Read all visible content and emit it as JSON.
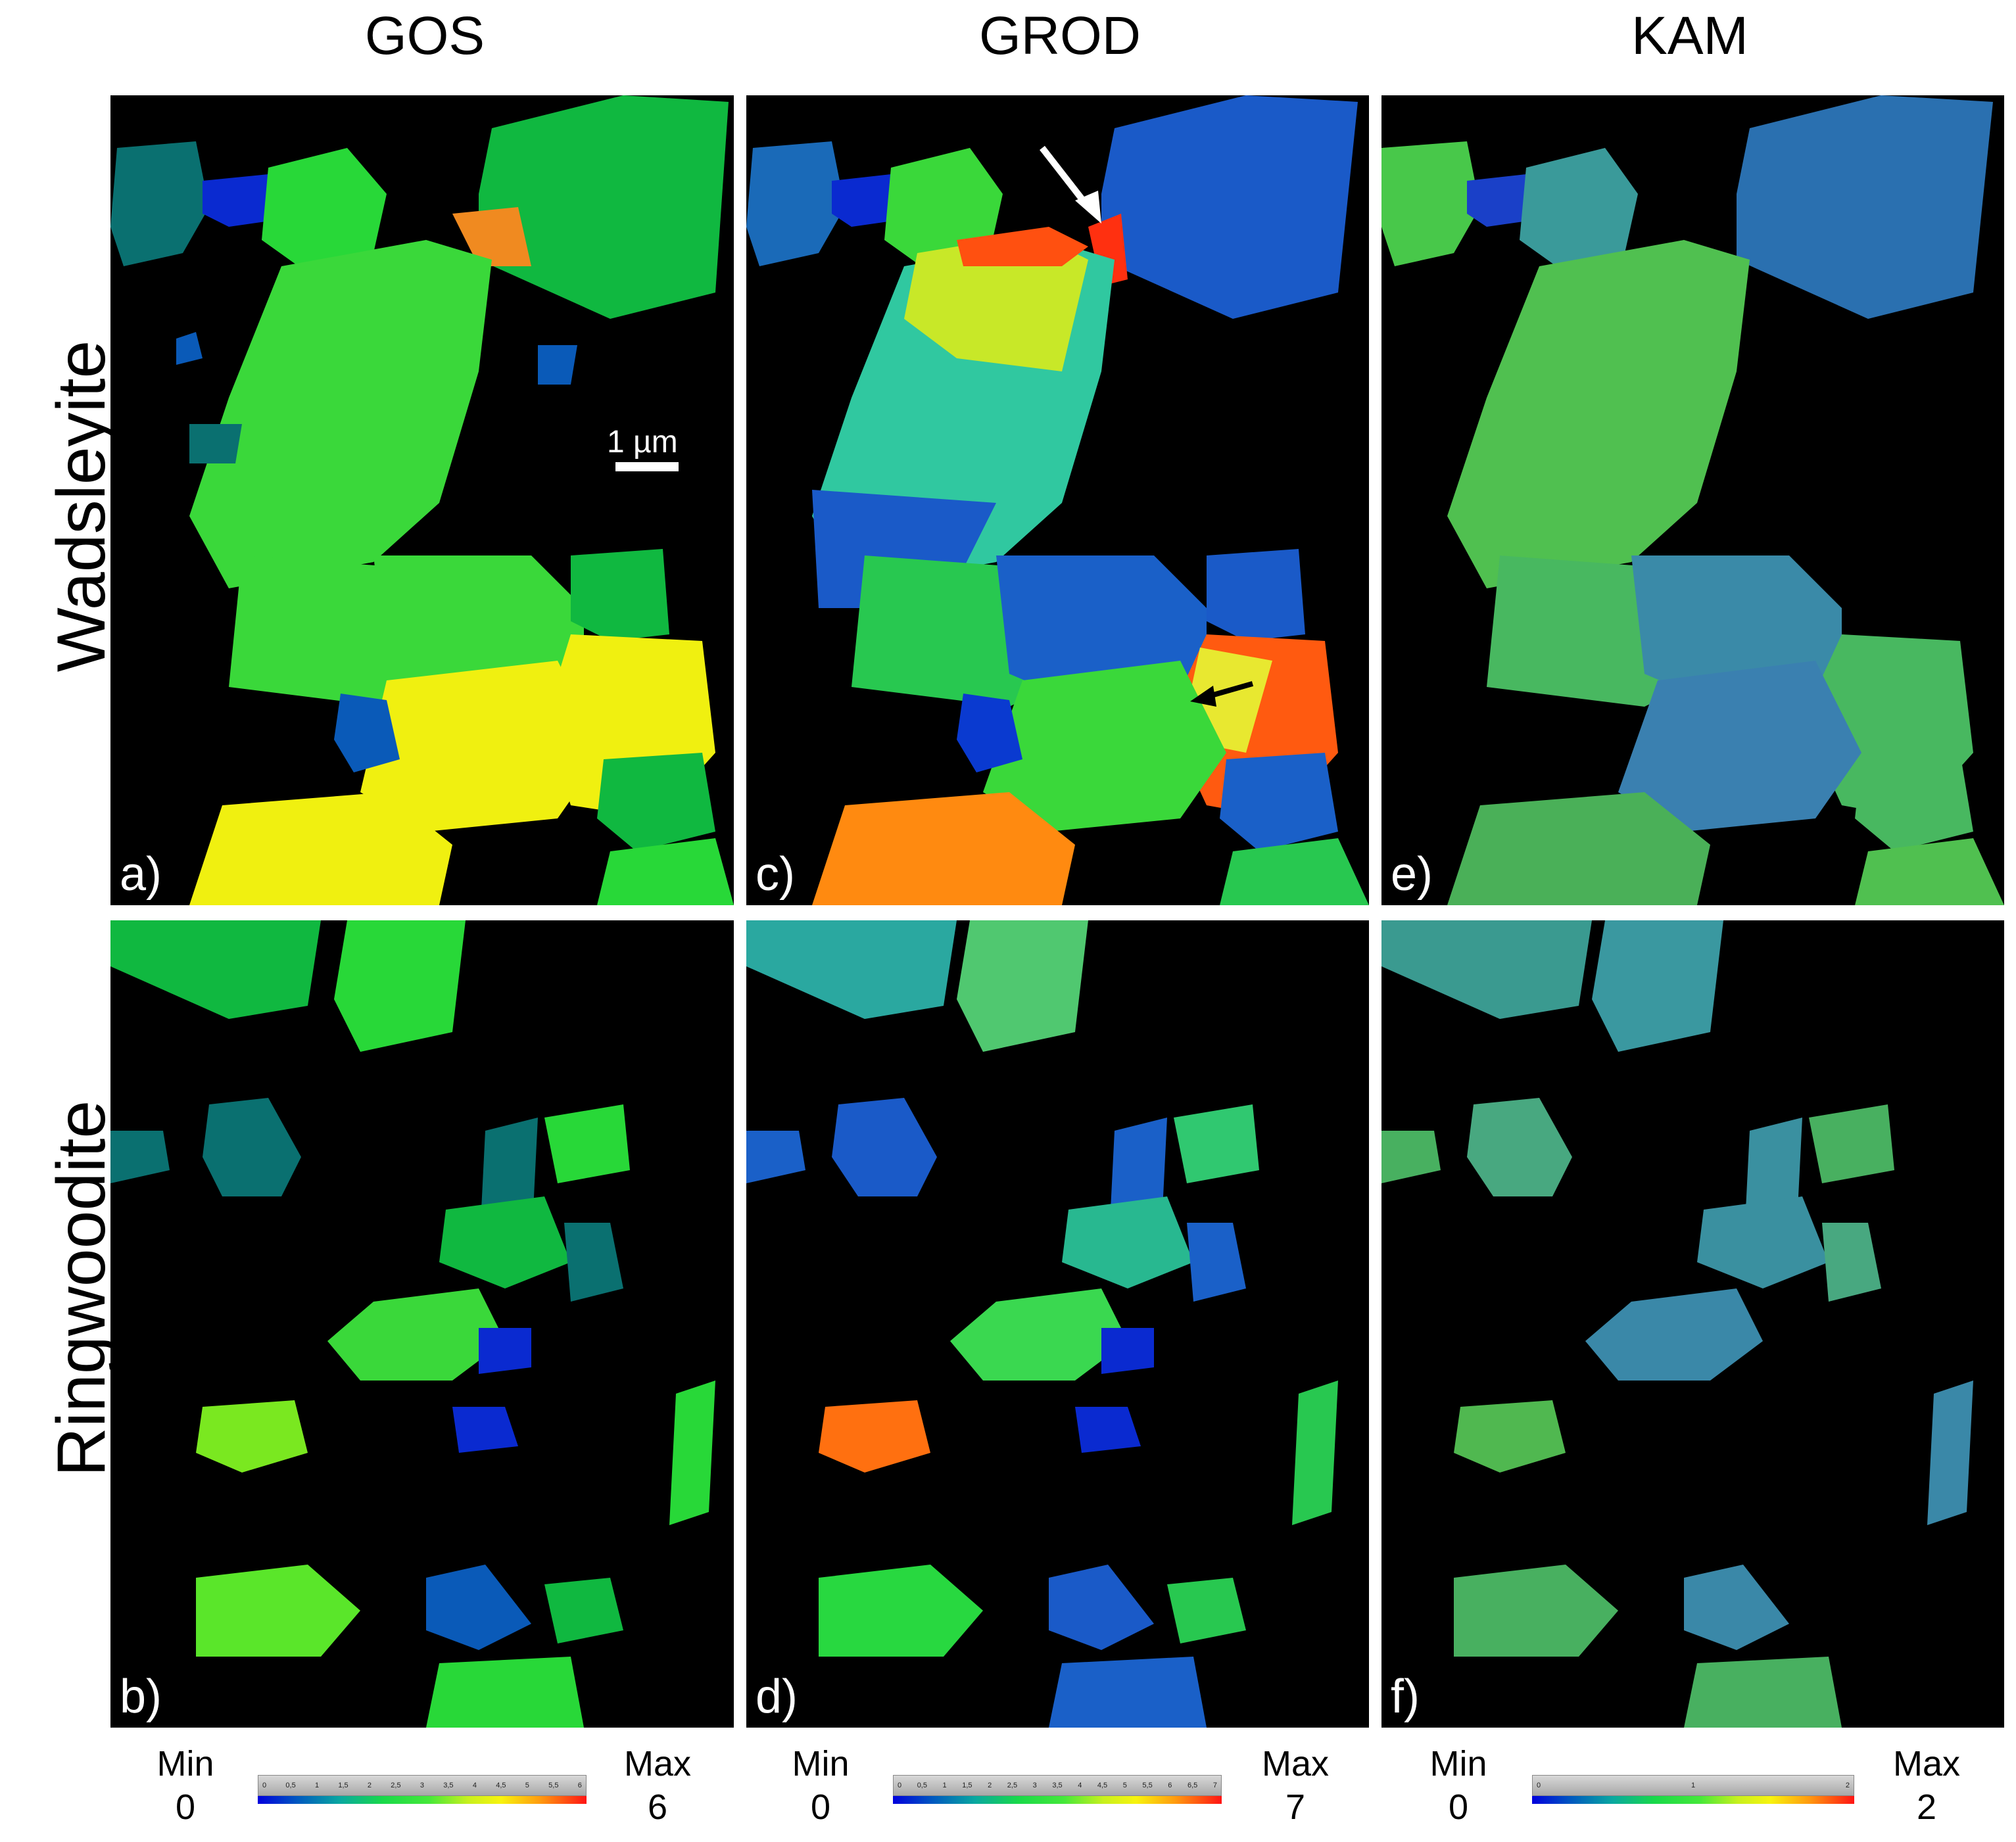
{
  "columns": [
    "GOS",
    "GROD",
    "KAM"
  ],
  "rows": [
    "Wadsleyite",
    "Ringwoodite"
  ],
  "panels": {
    "a": "a)",
    "b": "b)",
    "c": "c)",
    "d": "d)",
    "e": "e)",
    "f": "f)"
  },
  "scale_bar": "1 µm",
  "colorbars": [
    {
      "min_label": "Min",
      "min_value": "0",
      "max_label": "Max",
      "max_value": "6",
      "ticks": [
        "0",
        "0,5",
        "1",
        "1,5",
        "2",
        "2,5",
        "3",
        "3,5",
        "4",
        "4,5",
        "5",
        "5,5",
        "6"
      ]
    },
    {
      "min_label": "Min",
      "min_value": "0",
      "max_label": "Max",
      "max_value": "7",
      "ticks": [
        "0",
        "0,5",
        "1",
        "1,5",
        "2",
        "2,5",
        "3",
        "3,5",
        "4",
        "4,5",
        "5",
        "5,5",
        "6",
        "6,5",
        "7"
      ]
    },
    {
      "min_label": "Min",
      "min_value": "0",
      "max_label": "Max",
      "max_value": "2",
      "ticks": [
        "0",
        "1",
        "2"
      ]
    }
  ],
  "colors": {
    "background": "#000000",
    "blue": "#0a2ad0",
    "teal": "#0a7a7a",
    "green": "#1fc43a",
    "light_green": "#5ae62a",
    "yellow": "#f2f20a",
    "orange": "#ff8a10",
    "red": "#ff2010"
  },
  "annotations": [
    "white-arrow",
    "black-arrow"
  ]
}
